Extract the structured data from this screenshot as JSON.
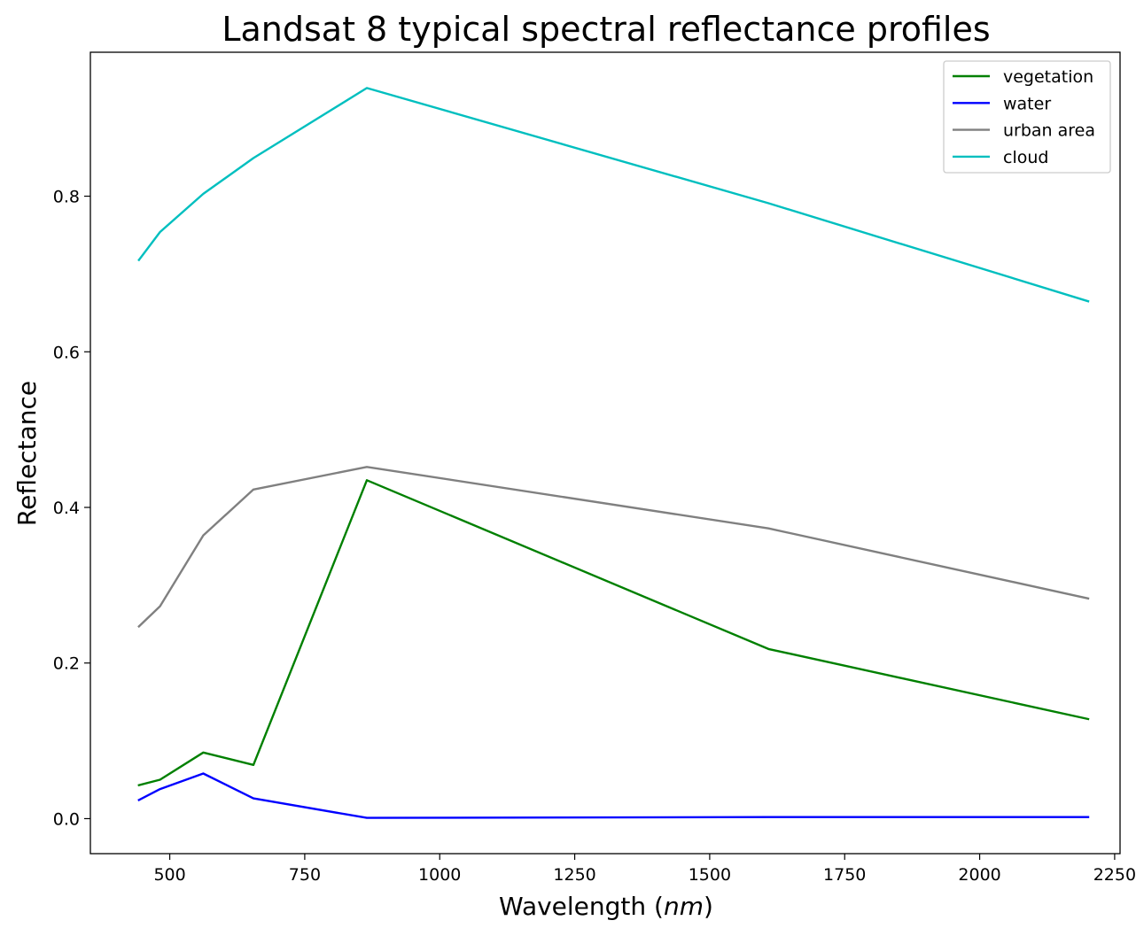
{
  "chart_data": {
    "type": "line",
    "title": "Landsat 8 typical spectral reflectance profiles",
    "xlabel": "Wavelength",
    "xlabel_unit": "nm",
    "ylabel": "Reflectance",
    "xlim": [
      353,
      2260
    ],
    "ylim": [
      -0.045,
      0.985
    ],
    "xticks": [
      500,
      750,
      1000,
      1250,
      1500,
      1750,
      2000,
      2250
    ],
    "yticks": [
      0.0,
      0.2,
      0.4,
      0.6,
      0.8
    ],
    "ytick_labels": [
      "0.0",
      "0.2",
      "0.4",
      "0.6",
      "0.8"
    ],
    "grid": false,
    "legend_position": "top-right",
    "x": [
      443,
      482,
      562,
      655,
      865,
      1609,
      2201
    ],
    "series": [
      {
        "name": "vegetation",
        "color": "#008000",
        "values": [
          0.043,
          0.05,
          0.085,
          0.069,
          0.435,
          0.218,
          0.128
        ]
      },
      {
        "name": "water",
        "color": "#0000ff",
        "values": [
          0.024,
          0.038,
          0.058,
          0.026,
          0.001,
          0.002,
          0.002
        ]
      },
      {
        "name": "urban area",
        "color": "#808080",
        "values": [
          0.247,
          0.273,
          0.364,
          0.423,
          0.452,
          0.373,
          0.283
        ]
      },
      {
        "name": "cloud",
        "color": "#00bfbf",
        "values": [
          0.718,
          0.754,
          0.803,
          0.849,
          0.939,
          0.791,
          0.665
        ]
      }
    ]
  }
}
